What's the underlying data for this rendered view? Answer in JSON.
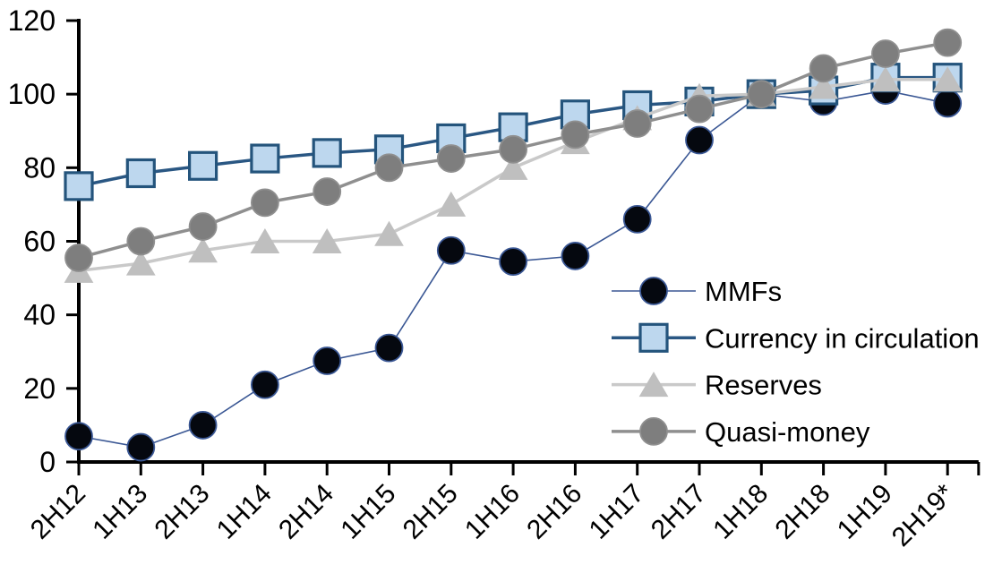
{
  "chart_data": {
    "type": "line",
    "title": "",
    "xlabel": "",
    "ylabel": "",
    "grid": false,
    "ylim": [
      0,
      120
    ],
    "y_ticks": [
      0,
      20,
      40,
      60,
      80,
      100,
      120
    ],
    "categories": [
      "2H12",
      "1H13",
      "2H13",
      "1H14",
      "2H14",
      "1H15",
      "2H15",
      "1H16",
      "2H16",
      "1H17",
      "2H17",
      "1H18",
      "2H18",
      "1H19",
      "2H19*"
    ],
    "legend_position": "middle-right",
    "axis_color": "#000000",
    "series": [
      {
        "name": "MMFs",
        "marker": "circle",
        "line_color": "#3A5794",
        "line_width": 1.6,
        "marker_fill": "#05080F",
        "marker_stroke": "#3A5794",
        "values": [
          7,
          4,
          10,
          21,
          27.5,
          31,
          57.5,
          54.5,
          56,
          66,
          87.5,
          100,
          98,
          101,
          97.5
        ]
      },
      {
        "name": "Currency in circulation",
        "marker": "square",
        "line_color": "#2A5783",
        "line_width": 3.5,
        "marker_fill": "#BDD7EE",
        "marker_stroke": "#24547C",
        "values": [
          75,
          78.5,
          80.5,
          82.5,
          84,
          85,
          88,
          91,
          94.5,
          97,
          98,
          100,
          101,
          104.5,
          104.5
        ]
      },
      {
        "name": "Reserves",
        "marker": "triangle",
        "line_color": "#C9C9C9",
        "line_width": 3.5,
        "marker_fill": "#BFBFBF",
        "marker_stroke": "#BFBFBF",
        "values": [
          52,
          54,
          57.5,
          60,
          60,
          62,
          70,
          80,
          87,
          93.5,
          99.5,
          100,
          102,
          104,
          104
        ]
      },
      {
        "name": "Quasi-money",
        "marker": "circle",
        "line_color": "#8F8F8F",
        "line_width": 3.5,
        "marker_fill": "#7E7E7E",
        "marker_stroke": "#8F8F8F",
        "values": [
          55.5,
          60,
          64,
          70.5,
          73.5,
          80,
          82.5,
          85,
          89,
          92,
          96,
          100,
          107,
          111,
          114
        ]
      }
    ]
  }
}
